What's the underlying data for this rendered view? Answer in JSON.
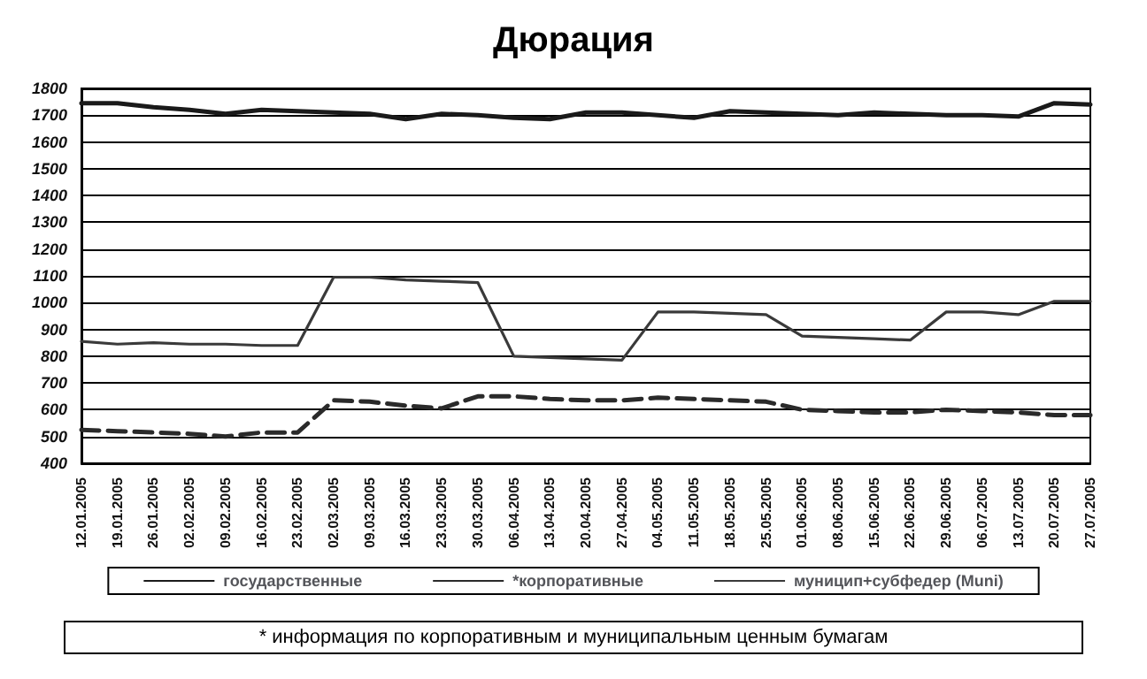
{
  "chart_data": {
    "type": "line",
    "title": "Дюрация",
    "categories": [
      "12.01.2005",
      "19.01.2005",
      "26.01.2005",
      "02.02.2005",
      "09.02.2005",
      "16.02.2005",
      "23.02.2005",
      "02.03.2005",
      "09.03.2005",
      "16.03.2005",
      "23.03.2005",
      "30.03.2005",
      "06.04.2005",
      "13.04.2005",
      "20.04.2005",
      "27.04.2005",
      "04.05.2005",
      "11.05.2005",
      "18.05.2005",
      "25.05.2005",
      "01.06.2005",
      "08.06.2005",
      "15.06.2005",
      "22.06.2005",
      "29.06.2005",
      "06.07.2005",
      "13.07.2005",
      "20.07.2005",
      "27.07.2005"
    ],
    "series": [
      {
        "name": "государственные",
        "color": "#1a1a1a",
        "line_style": "solid",
        "values": [
          1745,
          1745,
          1730,
          1720,
          1705,
          1720,
          1715,
          1710,
          1705,
          1685,
          1705,
          1700,
          1690,
          1685,
          1710,
          1710,
          1700,
          1690,
          1715,
          1710,
          1705,
          1700,
          1710,
          1705,
          1700,
          1700,
          1695,
          1745,
          1740
        ]
      },
      {
        "name": "*корпоративные",
        "color": "#2a2a2a",
        "line_style": "dashed",
        "values": [
          525,
          520,
          515,
          510,
          500,
          515,
          515,
          635,
          630,
          615,
          605,
          650,
          650,
          640,
          635,
          635,
          645,
          640,
          635,
          630,
          600,
          595,
          590,
          590,
          600,
          595,
          590,
          580,
          580
        ]
      },
      {
        "name": "муницип+субфедер (Muni)",
        "color": "#3a3a3a",
        "line_style": "solid",
        "values": [
          855,
          845,
          850,
          845,
          845,
          840,
          840,
          1095,
          1095,
          1085,
          1080,
          1075,
          800,
          795,
          790,
          785,
          965,
          965,
          960,
          955,
          875,
          870,
          865,
          860,
          965,
          965,
          955,
          1005,
          1005
        ]
      }
    ],
    "ylim": [
      400,
      1800
    ],
    "yticks": [
      400,
      500,
      600,
      700,
      800,
      900,
      1000,
      1100,
      1200,
      1300,
      1400,
      1500,
      1600,
      1700,
      1800
    ],
    "grid": "y",
    "legend": "bottom",
    "marker": "none",
    "annotations": [
      "* информация по корпоративным и муниципальным ценным бумагам"
    ]
  }
}
